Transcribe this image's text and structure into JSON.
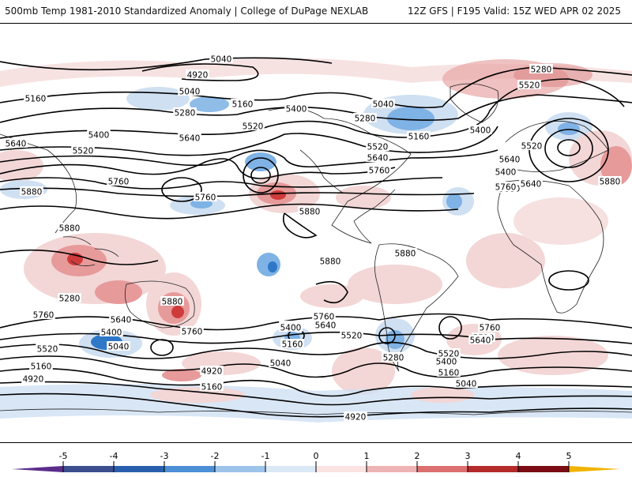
{
  "header": {
    "title_left": "500mb Temp 1981-2010 Standardized Anomaly | College of DuPage NEXLAB",
    "title_right": "12Z GFS | F195 Valid: 15Z WED APR 02 2025"
  },
  "map": {
    "contour_labels": [
      {
        "text": "5040"
      },
      {
        "text": "4920"
      },
      {
        "text": "5040"
      },
      {
        "text": "5160"
      },
      {
        "text": "5160"
      },
      {
        "text": "5280"
      },
      {
        "text": "5400"
      },
      {
        "text": "5400"
      },
      {
        "text": "5520"
      },
      {
        "text": "5640"
      },
      {
        "text": "5520"
      },
      {
        "text": "5640"
      },
      {
        "text": "5760"
      },
      {
        "text": "5760"
      },
      {
        "text": "5880"
      },
      {
        "text": "5880"
      },
      {
        "text": "5280"
      },
      {
        "text": "5040"
      },
      {
        "text": "5520"
      },
      {
        "text": "5160"
      },
      {
        "text": "5280"
      },
      {
        "text": "5400"
      },
      {
        "text": "5520"
      },
      {
        "text": "5640"
      },
      {
        "text": "5760"
      },
      {
        "text": "5880"
      },
      {
        "text": "5880"
      },
      {
        "text": "5880"
      },
      {
        "text": "5880"
      },
      {
        "text": "5280"
      },
      {
        "text": "5520"
      },
      {
        "text": "5400"
      },
      {
        "text": "5640"
      },
      {
        "text": "5640"
      },
      {
        "text": "5760"
      },
      {
        "text": "5880"
      },
      {
        "text": "5760"
      },
      {
        "text": "5640"
      },
      {
        "text": "5400"
      },
      {
        "text": "5520"
      },
      {
        "text": "5040"
      },
      {
        "text": "5160"
      },
      {
        "text": "4920"
      },
      {
        "text": "5880"
      },
      {
        "text": "5760"
      },
      {
        "text": "5640"
      },
      {
        "text": "5400"
      },
      {
        "text": "5160"
      },
      {
        "text": "5040"
      },
      {
        "text": "5280"
      },
      {
        "text": "4920"
      },
      {
        "text": "5760"
      },
      {
        "text": "5640"
      },
      {
        "text": "5520"
      },
      {
        "text": "5400"
      },
      {
        "text": "5160"
      },
      {
        "text": "5040"
      },
      {
        "text": "5280"
      },
      {
        "text": "5400"
      },
      {
        "text": "4920"
      },
      {
        "text": "5520"
      },
      {
        "text": "5160"
      },
      {
        "text": "5640"
      },
      {
        "text": "5760"
      },
      {
        "text": "5520"
      }
    ]
  },
  "colorbar": {
    "ticks": [
      "-5",
      "-4",
      "-3",
      "-2",
      "-1",
      "0",
      "1",
      "2",
      "3",
      "4",
      "5"
    ],
    "colors": [
      "#5a2d8a",
      "#1f3b73",
      "#2f78c8",
      "#7fb2e5",
      "#cfe0f2",
      "#ffffff",
      "#f6d3d3",
      "#e79a9a",
      "#cf3b3b",
      "#8b0d18",
      "#f0b400"
    ]
  }
}
